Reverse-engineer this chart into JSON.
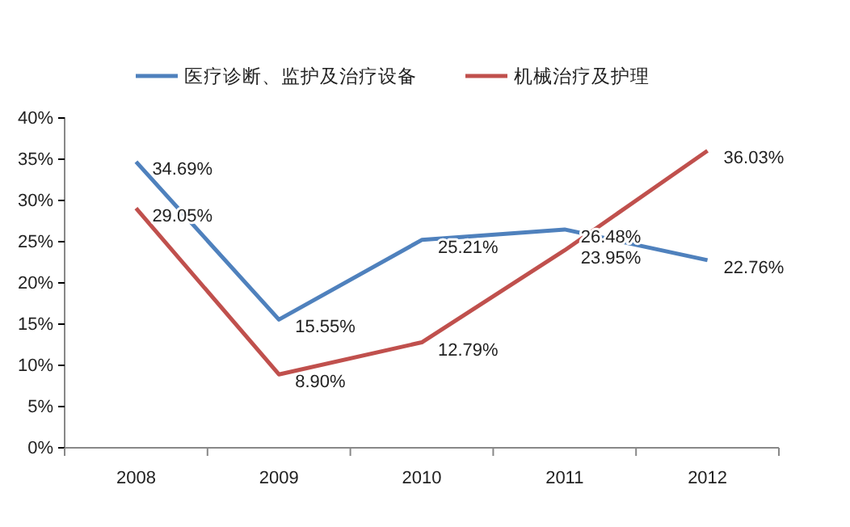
{
  "chart_data": {
    "type": "line",
    "categories": [
      "2008",
      "2009",
      "2010",
      "2011",
      "2012"
    ],
    "series": [
      {
        "name": "医疗诊断、监护及治疗设备",
        "color": "#4f81bd",
        "values": [
          34.69,
          15.55,
          25.21,
          26.48,
          22.76
        ],
        "value_labels": [
          "34.69%",
          "15.55%",
          "25.21%",
          "26.48%",
          "22.76%"
        ]
      },
      {
        "name": "机械治疗及护理",
        "color": "#c0504d",
        "values": [
          29.05,
          8.9,
          12.79,
          23.95,
          36.03
        ],
        "value_labels": [
          "29.05%",
          "8.90%",
          "12.79%",
          "23.95%",
          "36.03%"
        ]
      }
    ],
    "ylim": [
      0,
      40
    ],
    "yticks": [
      {
        "value": 0,
        "label": "0%"
      },
      {
        "value": 5,
        "label": "5%"
      },
      {
        "value": 10,
        "label": "10%"
      },
      {
        "value": 15,
        "label": "15%"
      },
      {
        "value": 20,
        "label": "20%"
      },
      {
        "value": 25,
        "label": "25%"
      },
      {
        "value": 30,
        "label": "30%"
      },
      {
        "value": 35,
        "label": "35%"
      },
      {
        "value": 40,
        "label": "40%"
      }
    ],
    "legend": "top",
    "grid": false,
    "marker": "none",
    "line_style": "solid"
  }
}
